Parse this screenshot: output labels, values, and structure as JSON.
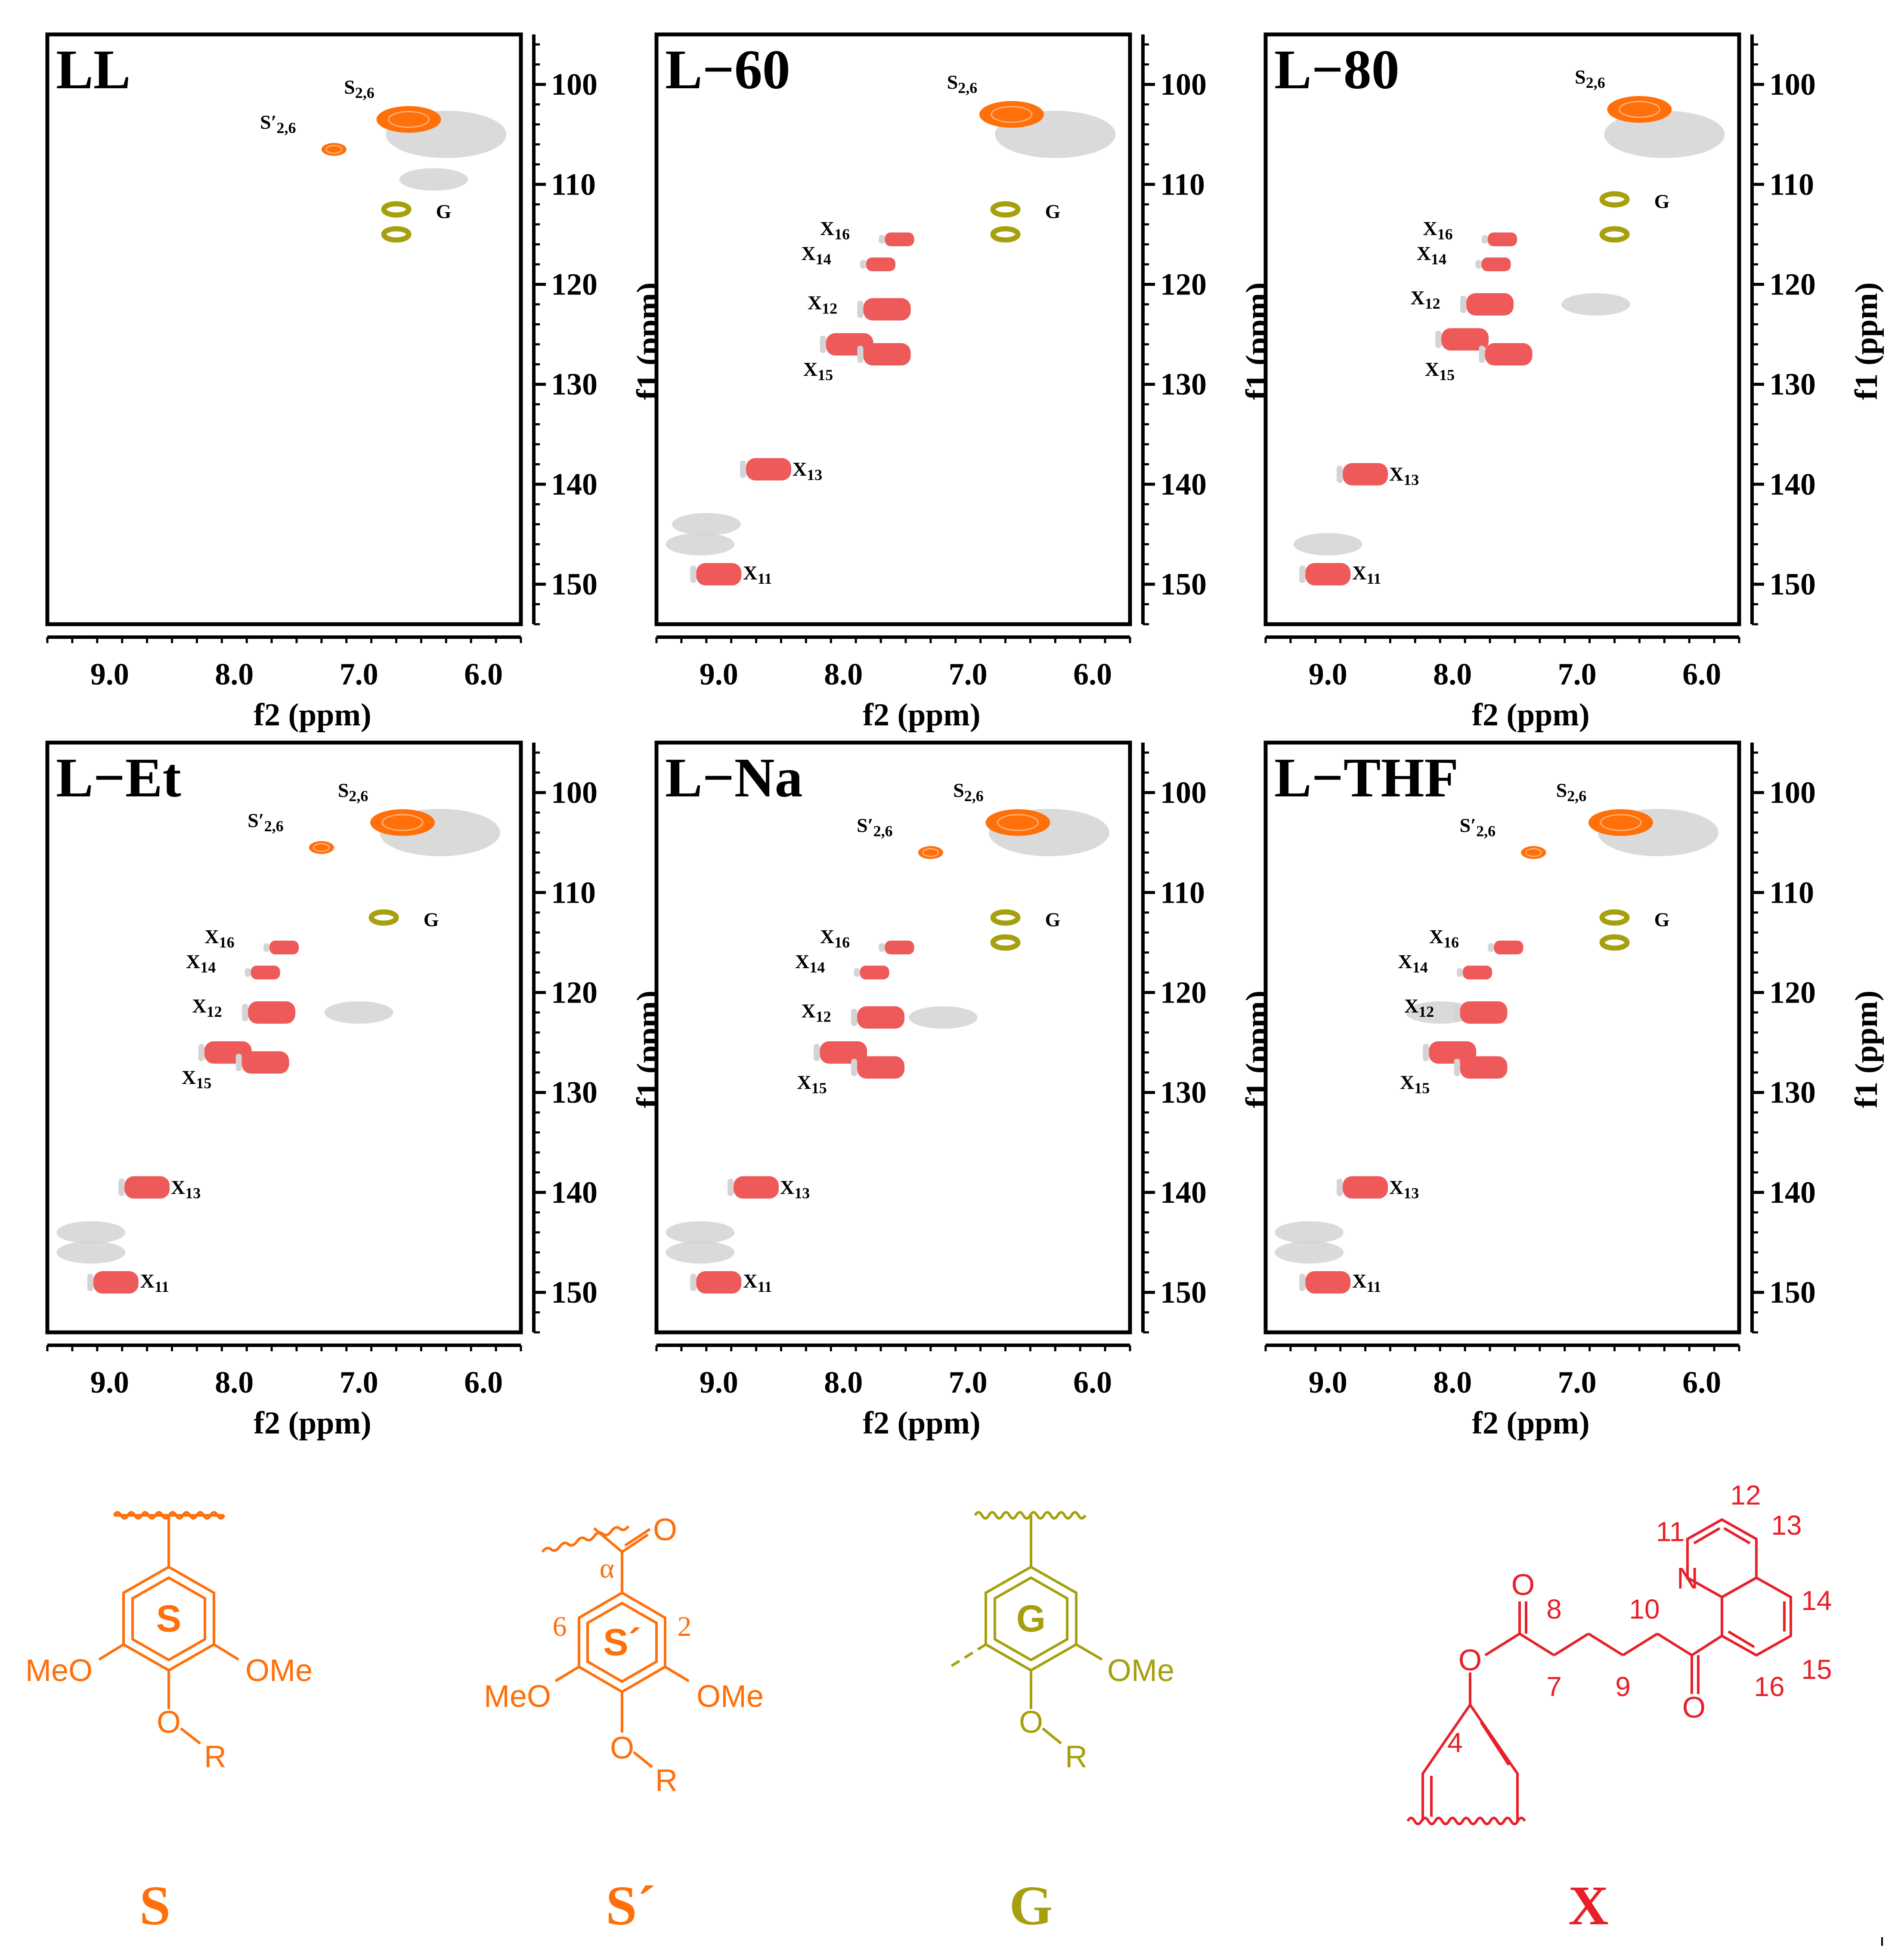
{
  "figure": {
    "axis_common": {
      "xlabel": "f2 (ppm)",
      "ylabel": "f1 (ppm)",
      "xlim": [
        9.5,
        5.7
      ],
      "ylim": [
        95,
        154
      ],
      "x_major_ticks": [
        9.0,
        8.0,
        7.0,
        6.0
      ],
      "x_tick_labels": [
        "9.0",
        "8.0",
        "7.0",
        "6.0"
      ],
      "y_major_ticks": [
        100,
        110,
        120,
        130,
        140,
        150
      ],
      "y_tick_labels": [
        "100",
        "110",
        "120",
        "130",
        "140",
        "150"
      ]
    },
    "colors": {
      "S": "#ff6f0a",
      "S_prime": "#ff6f0a",
      "G": "#a6a00e",
      "X": "#ee5a5a",
      "background_contour": "#d4d4d4",
      "text": "#000000",
      "structure_X": "#e8202a"
    }
  },
  "chart_data": [
    {
      "type": "scatter",
      "subtype": "2D HSQC NMR contour map",
      "title": "LL",
      "xlabel": "f2 (ppm)",
      "ylabel": "f1 (ppm)",
      "xlim": [
        9.5,
        5.7
      ],
      "ylim": [
        95,
        154
      ],
      "peaks": [
        {
          "label": "S2,6",
          "group": "S",
          "x": 6.6,
          "y": 103.5
        },
        {
          "label": "S′2,6",
          "group": "S_prime",
          "x": 7.2,
          "y": 106.5
        },
        {
          "label": "G",
          "group": "G",
          "x": 6.7,
          "y": 112.5
        },
        {
          "label": "",
          "group": "G",
          "x": 6.7,
          "y": 115.0
        }
      ],
      "background": [
        {
          "x": 6.3,
          "y": 105.0
        },
        {
          "x": 6.4,
          "y": 109.5
        }
      ],
      "annotations": [
        "S2,6",
        "S′2,6",
        "G"
      ]
    },
    {
      "type": "scatter",
      "subtype": "2D HSQC NMR contour map",
      "title": "L−60",
      "xlabel": "f2 (ppm)",
      "ylabel": "f1 (ppm)",
      "xlim": [
        9.5,
        5.7
      ],
      "ylim": [
        95,
        154
      ],
      "peaks": [
        {
          "label": "S2,6",
          "group": "S",
          "x": 6.65,
          "y": 103.0
        },
        {
          "label": "G",
          "group": "G",
          "x": 6.7,
          "y": 112.5
        },
        {
          "label": "",
          "group": "G",
          "x": 6.7,
          "y": 115.0
        },
        {
          "label": "X16",
          "group": "X",
          "x": 7.55,
          "y": 115.5
        },
        {
          "label": "X14",
          "group": "X",
          "x": 7.7,
          "y": 118.0
        },
        {
          "label": "X12",
          "group": "X",
          "x": 7.65,
          "y": 122.5
        },
        {
          "label": "",
          "group": "X",
          "x": 7.95,
          "y": 126.0
        },
        {
          "label": "X15",
          "group": "X",
          "x": 7.65,
          "y": 127.0
        },
        {
          "label": "X13",
          "group": "X",
          "x": 8.6,
          "y": 138.5
        },
        {
          "label": "X11",
          "group": "X",
          "x": 9.0,
          "y": 149.0
        }
      ],
      "background": [
        {
          "x": 6.3,
          "y": 105.0
        },
        {
          "x": 9.1,
          "y": 144.0
        },
        {
          "x": 9.15,
          "y": 146.0
        }
      ],
      "annotations": [
        "S2,6",
        "G",
        "X16",
        "X14",
        "X12",
        "X15",
        "X13",
        "X11"
      ]
    },
    {
      "type": "scatter",
      "subtype": "2D HSQC NMR contour map",
      "title": "L−80",
      "xlabel": "f2 (ppm)",
      "ylabel": "f1 (ppm)",
      "xlim": [
        9.5,
        5.7
      ],
      "ylim": [
        95,
        154
      ],
      "peaks": [
        {
          "label": "S2,6",
          "group": "S",
          "x": 6.5,
          "y": 102.5
        },
        {
          "label": "G",
          "group": "G",
          "x": 6.7,
          "y": 111.5
        },
        {
          "label": "",
          "group": "G",
          "x": 6.7,
          "y": 115.0
        },
        {
          "label": "X16",
          "group": "X",
          "x": 7.6,
          "y": 115.5
        },
        {
          "label": "X14",
          "group": "X",
          "x": 7.65,
          "y": 118.0
        },
        {
          "label": "X12",
          "group": "X",
          "x": 7.7,
          "y": 122.0
        },
        {
          "label": "",
          "group": "X",
          "x": 7.9,
          "y": 125.5
        },
        {
          "label": "X15",
          "group": "X",
          "x": 7.55,
          "y": 127.0
        },
        {
          "label": "X13",
          "group": "X",
          "x": 8.7,
          "y": 139.0
        },
        {
          "label": "X11",
          "group": "X",
          "x": 9.0,
          "y": 149.0
        }
      ],
      "background": [
        {
          "x": 6.3,
          "y": 105.0
        },
        {
          "x": 6.85,
          "y": 122.0
        },
        {
          "x": 9.0,
          "y": 146.0
        }
      ],
      "annotations": [
        "S2,6",
        "G",
        "X16",
        "X14",
        "X12",
        "X15",
        "X13",
        "X11"
      ]
    },
    {
      "type": "scatter",
      "subtype": "2D HSQC NMR contour map",
      "title": "L−Et",
      "xlabel": "f2 (ppm)",
      "ylabel": "f1 (ppm)",
      "xlim": [
        9.5,
        5.7
      ],
      "ylim": [
        95,
        154
      ],
      "peaks": [
        {
          "label": "S2,6",
          "group": "S",
          "x": 6.65,
          "y": 103.0
        },
        {
          "label": "S′2,6",
          "group": "S_prime",
          "x": 7.3,
          "y": 105.5
        },
        {
          "label": "G",
          "group": "G",
          "x": 6.8,
          "y": 112.5
        },
        {
          "label": "X16",
          "group": "X",
          "x": 7.6,
          "y": 115.5
        },
        {
          "label": "X14",
          "group": "X",
          "x": 7.75,
          "y": 118.0
        },
        {
          "label": "X12",
          "group": "X",
          "x": 7.7,
          "y": 122.0
        },
        {
          "label": "",
          "group": "X",
          "x": 8.05,
          "y": 126.0
        },
        {
          "label": "X15",
          "group": "X",
          "x": 7.75,
          "y": 127.0
        },
        {
          "label": "X13",
          "group": "X",
          "x": 8.7,
          "y": 139.5
        },
        {
          "label": "X11",
          "group": "X",
          "x": 8.95,
          "y": 149.0
        }
      ],
      "background": [
        {
          "x": 6.35,
          "y": 104.0
        },
        {
          "x": 7.0,
          "y": 122.0
        },
        {
          "x": 9.15,
          "y": 144.0
        },
        {
          "x": 9.15,
          "y": 146.0
        }
      ],
      "annotations": [
        "S2,6",
        "S′2,6",
        "G",
        "X16",
        "X14",
        "X12",
        "X15",
        "X13",
        "X11"
      ]
    },
    {
      "type": "scatter",
      "subtype": "2D HSQC NMR contour map",
      "title": "L−Na",
      "xlabel": "f2 (ppm)",
      "ylabel": "f1 (ppm)",
      "xlim": [
        9.5,
        5.7
      ],
      "ylim": [
        95,
        154
      ],
      "peaks": [
        {
          "label": "S2,6",
          "group": "S",
          "x": 6.6,
          "y": 103.0
        },
        {
          "label": "S′2,6",
          "group": "S_prime",
          "x": 7.3,
          "y": 106.0
        },
        {
          "label": "G",
          "group": "G",
          "x": 6.7,
          "y": 112.5
        },
        {
          "label": "",
          "group": "G",
          "x": 6.7,
          "y": 115.0
        },
        {
          "label": "X16",
          "group": "X",
          "x": 7.55,
          "y": 115.5
        },
        {
          "label": "X14",
          "group": "X",
          "x": 7.75,
          "y": 118.0
        },
        {
          "label": "X12",
          "group": "X",
          "x": 7.7,
          "y": 122.5
        },
        {
          "label": "",
          "group": "X",
          "x": 8.0,
          "y": 126.0
        },
        {
          "label": "X15",
          "group": "X",
          "x": 7.7,
          "y": 127.5
        },
        {
          "label": "X13",
          "group": "X",
          "x": 8.7,
          "y": 139.5
        },
        {
          "label": "X11",
          "group": "X",
          "x": 9.0,
          "y": 149.0
        }
      ],
      "background": [
        {
          "x": 6.35,
          "y": 104.0
        },
        {
          "x": 7.2,
          "y": 122.5
        },
        {
          "x": 9.15,
          "y": 144.0
        },
        {
          "x": 9.15,
          "y": 146.0
        }
      ],
      "annotations": [
        "S2,6",
        "S′2,6",
        "G",
        "X16",
        "X14",
        "X12",
        "X15",
        "X13",
        "X11"
      ]
    },
    {
      "type": "scatter",
      "subtype": "2D HSQC NMR contour map",
      "title": "L−THF",
      "xlabel": "f2 (ppm)",
      "ylabel": "f1 (ppm)",
      "xlim": [
        9.5,
        5.7
      ],
      "ylim": [
        95,
        154
      ],
      "peaks": [
        {
          "label": "S2,6",
          "group": "S",
          "x": 6.65,
          "y": 103.0
        },
        {
          "label": "S′2,6",
          "group": "S_prime",
          "x": 7.35,
          "y": 106.0
        },
        {
          "label": "G",
          "group": "G",
          "x": 6.7,
          "y": 112.5
        },
        {
          "label": "",
          "group": "G",
          "x": 6.7,
          "y": 115.0
        },
        {
          "label": "X16",
          "group": "X",
          "x": 7.55,
          "y": 115.5
        },
        {
          "label": "X14",
          "group": "X",
          "x": 7.8,
          "y": 118.0
        },
        {
          "label": "X12",
          "group": "X",
          "x": 7.75,
          "y": 122.0
        },
        {
          "label": "",
          "group": "X",
          "x": 8.0,
          "y": 126.0
        },
        {
          "label": "X15",
          "group": "X",
          "x": 7.75,
          "y": 127.5
        },
        {
          "label": "X13",
          "group": "X",
          "x": 8.7,
          "y": 139.5
        },
        {
          "label": "X11",
          "group": "X",
          "x": 9.0,
          "y": 149.0
        }
      ],
      "background": [
        {
          "x": 6.35,
          "y": 104.0
        },
        {
          "x": 8.1,
          "y": 122.0
        },
        {
          "x": 9.15,
          "y": 144.0
        },
        {
          "x": 9.15,
          "y": 146.0
        }
      ],
      "annotations": [
        "S2,6",
        "S′2,6",
        "G",
        "X16",
        "X14",
        "X12",
        "X15",
        "X13",
        "X11"
      ]
    }
  ],
  "structures": {
    "S": {
      "caption": "S",
      "ring_label": "S",
      "substituents": [
        "MeO",
        "OMe",
        "O",
        "R"
      ]
    },
    "S_prime": {
      "caption": "S´",
      "ring_label": "S´",
      "substituents": [
        "MeO",
        "OMe",
        "O",
        "R",
        "O",
        "α",
        "2",
        "6"
      ]
    },
    "G": {
      "caption": "G",
      "ring_label": "G",
      "substituents": [
        "OMe",
        "O",
        "R"
      ]
    },
    "X": {
      "caption": "X",
      "atoms": [
        "N",
        "O",
        "O",
        "O"
      ],
      "numbers": [
        "4",
        "7",
        "8",
        "9",
        "10",
        "11",
        "12",
        "13",
        "14",
        "15",
        "16"
      ]
    }
  }
}
